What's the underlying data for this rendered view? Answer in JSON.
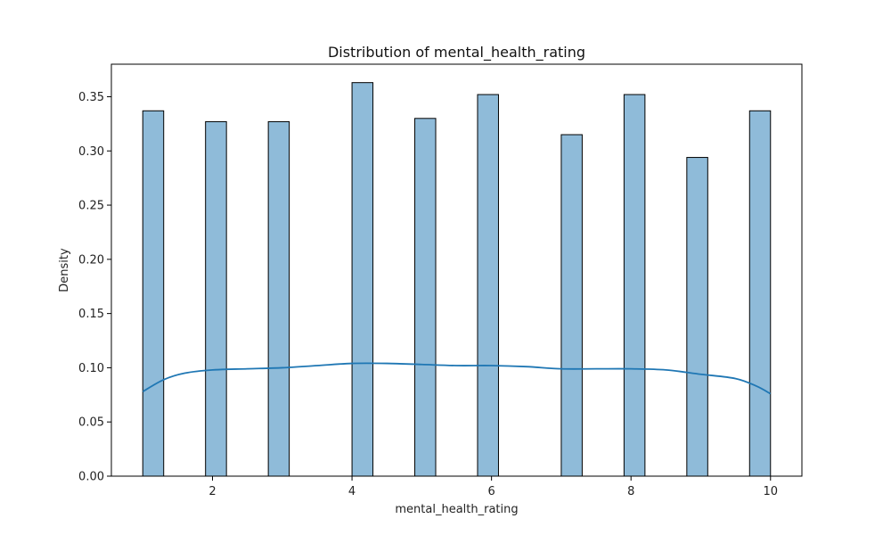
{
  "chart_data": {
    "type": "bar",
    "title": "Distribution of mental_health_rating",
    "xlabel": "mental_health_rating",
    "ylabel": "Density",
    "xlim": [
      0.55,
      10.45
    ],
    "ylim": [
      0,
      0.38
    ],
    "x_ticks": [
      2,
      4,
      6,
      8,
      10
    ],
    "y_ticks": [
      0.0,
      0.05,
      0.1,
      0.15,
      0.2,
      0.25,
      0.3,
      0.35
    ],
    "y_tick_labels": [
      "0.00",
      "0.05",
      "0.10",
      "0.15",
      "0.20",
      "0.25",
      "0.30",
      "0.35"
    ],
    "grid": false,
    "bar_color": "#8fbbd9",
    "bar_edge_color": "#000000",
    "kde_color": "#1f77b4",
    "bars": [
      {
        "x_start": 1.0,
        "x_end": 1.3,
        "value": 0.337
      },
      {
        "x_start": 1.9,
        "x_end": 2.2,
        "value": 0.327
      },
      {
        "x_start": 2.8,
        "x_end": 3.1,
        "value": 0.327
      },
      {
        "x_start": 4.0,
        "x_end": 4.3,
        "value": 0.363
      },
      {
        "x_start": 4.9,
        "x_end": 5.2,
        "value": 0.33
      },
      {
        "x_start": 5.8,
        "x_end": 6.1,
        "value": 0.352
      },
      {
        "x_start": 7.0,
        "x_end": 7.3,
        "value": 0.315
      },
      {
        "x_start": 7.9,
        "x_end": 8.2,
        "value": 0.352
      },
      {
        "x_start": 8.8,
        "x_end": 9.1,
        "value": 0.294
      },
      {
        "x_start": 9.7,
        "x_end": 10.0,
        "value": 0.337
      }
    ],
    "kde": {
      "x": [
        1.0,
        1.3,
        1.6,
        2.0,
        2.5,
        3.0,
        3.5,
        4.0,
        4.5,
        5.0,
        5.5,
        6.0,
        6.5,
        7.0,
        7.5,
        8.0,
        8.5,
        9.0,
        9.5,
        9.8,
        10.0
      ],
      "y": [
        0.078,
        0.089,
        0.095,
        0.098,
        0.099,
        0.1,
        0.102,
        0.104,
        0.104,
        0.103,
        0.102,
        0.102,
        0.101,
        0.099,
        0.099,
        0.099,
        0.098,
        0.094,
        0.09,
        0.083,
        0.076
      ]
    }
  }
}
